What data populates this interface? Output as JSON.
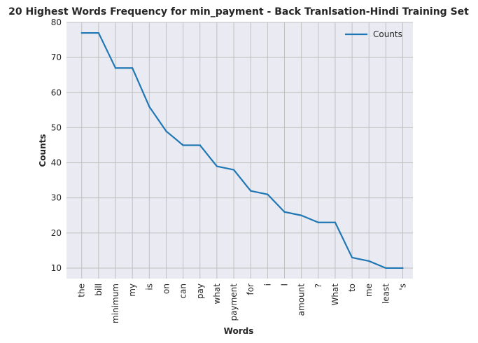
{
  "chart_data": {
    "type": "line",
    "title": "20 Highest Words Frequency for min_payment - Back Tranlsation-Hindi Training Set",
    "xlabel": "Words",
    "ylabel": "Counts",
    "categories": [
      "the",
      "bill",
      "minimum",
      "my",
      "is",
      "on",
      "can",
      "pay",
      "what",
      "payment",
      "for",
      "i",
      "I",
      "amount",
      "?",
      "What",
      "to",
      "me",
      "least",
      "'s"
    ],
    "series": [
      {
        "name": "Counts",
        "values": [
          77,
          77,
          67,
          67,
          56,
          49,
          45,
          45,
          39,
          38,
          32,
          31,
          26,
          25,
          23,
          23,
          13,
          12,
          10,
          10
        ],
        "color": "#1f77b4"
      }
    ],
    "ylim": [
      7,
      80
    ],
    "yticks": [
      10,
      20,
      30,
      40,
      50,
      60,
      70,
      80
    ],
    "grid": true,
    "legend": "top-right",
    "background": "#eaeaf2",
    "grid_color": "#c0c0c0"
  }
}
